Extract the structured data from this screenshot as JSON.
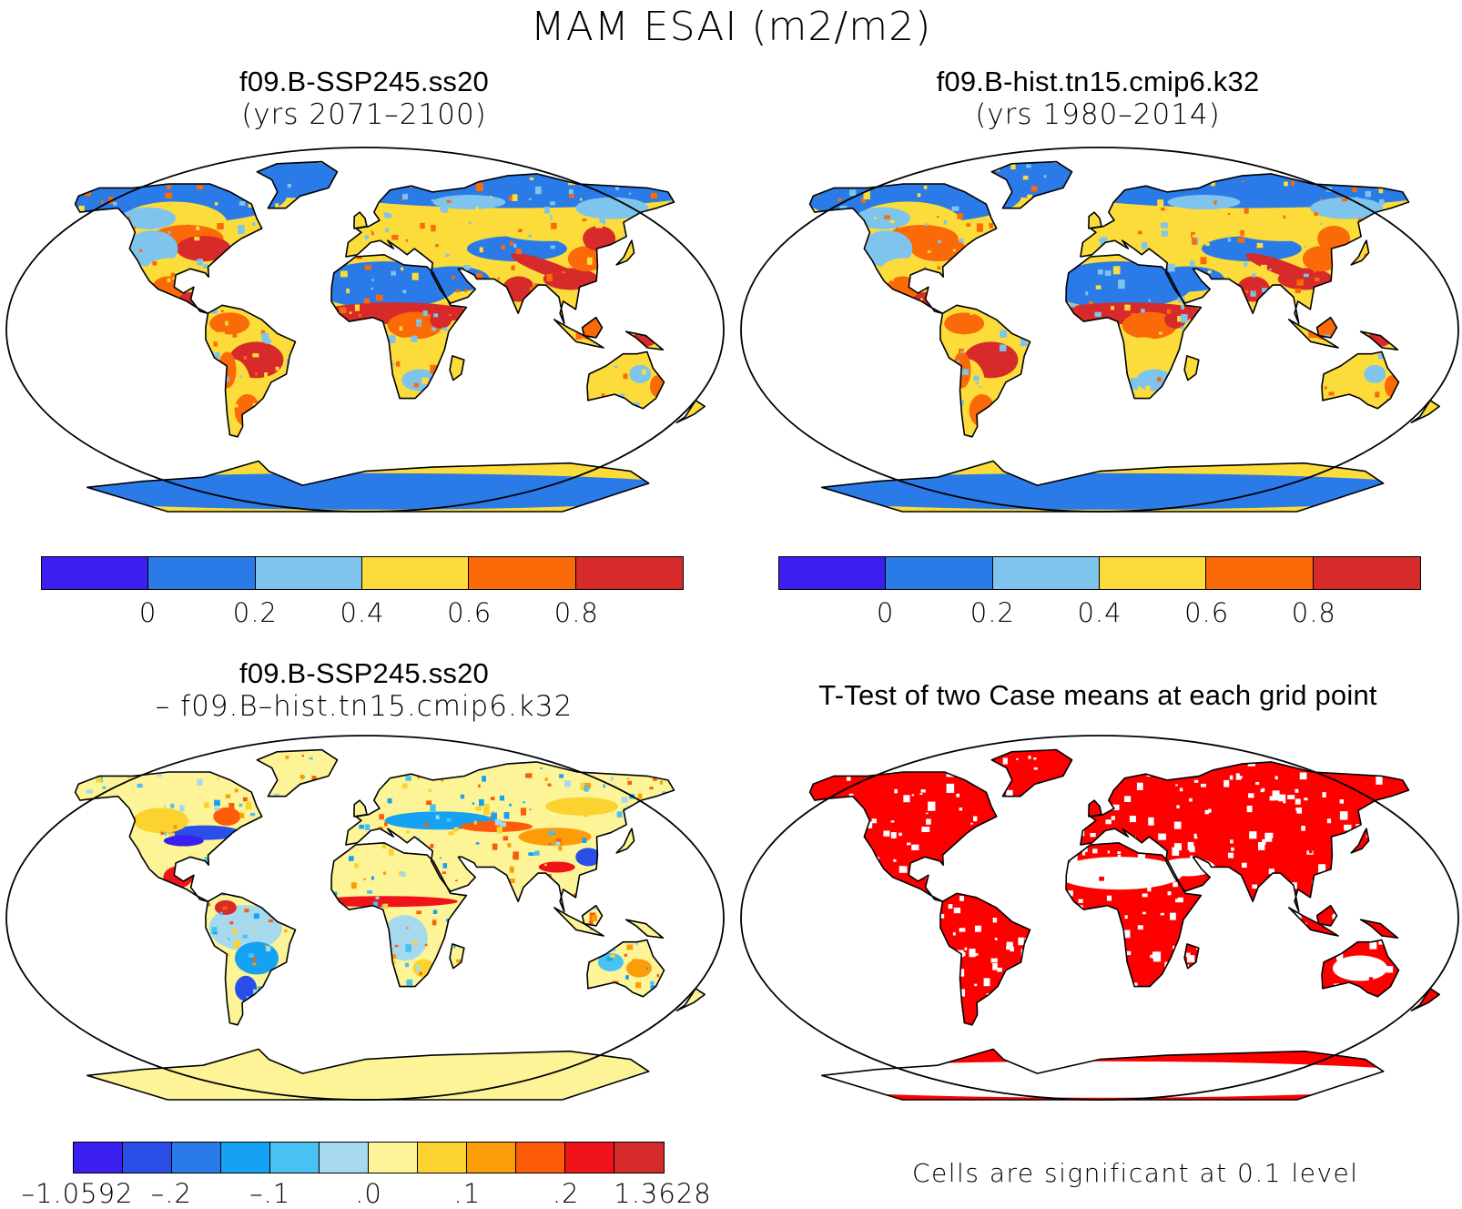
{
  "title": "MAM ESAI (m2/m2)",
  "panels": {
    "tl": {
      "line1": "f09.B-SSP245.ss20",
      "line2": "(yrs 2071–2100)"
    },
    "tr": {
      "line1": "f09.B-hist.tn15.cmip6.k32",
      "line2": "(yrs 1980–2014)"
    },
    "bl": {
      "line1": "f09.B-SSP245.ss20",
      "line2": "– f09.B–hist.tn15.cmip6.k32"
    },
    "br": {
      "line1": "T-Test of two Case means at each grid point"
    }
  },
  "colorbar_main": {
    "colors": [
      "#3a1ff0",
      "#2a7ae8",
      "#7ec4ec",
      "#fbdc3a",
      "#fb6a08",
      "#d72a2a"
    ],
    "labels": [
      "0",
      "0.2",
      "0.4",
      "0.6",
      "0.8"
    ]
  },
  "colorbar_diff": {
    "colors": [
      "#3a1ff0",
      "#2a4fe8",
      "#2a7ae8",
      "#16a2f2",
      "#47c2f2",
      "#a6d9ee",
      "#fcf496",
      "#fcd230",
      "#fc9c08",
      "#fc5c0a",
      "#f0141a",
      "#d72a2a"
    ],
    "labels": [
      "–1.0592",
      "–.2",
      "–.1",
      ".0",
      ".1",
      ".2",
      "1.3628"
    ]
  },
  "significance_note": "Cells are significant at 0.1 level",
  "legend_colors": {
    "significant": "#ff0000",
    "coast": "#000000"
  }
}
